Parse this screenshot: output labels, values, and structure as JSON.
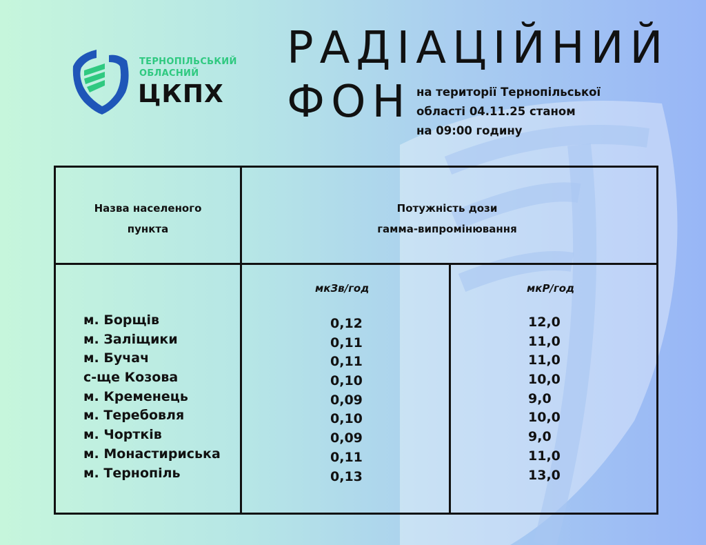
{
  "logo": {
    "org_line1": "ТЕРНОПІЛЬСЬКИЙ",
    "org_line2": "ОБЛАСНИЙ",
    "org_abbr": "ЦКПХ",
    "colors": {
      "blue": "#1f56b8",
      "green": "#2fc980"
    }
  },
  "title": {
    "line1": "РАДІАЦІЙНИЙ",
    "line2": "ФОН",
    "subtitle": [
      "на території Тернопільської",
      "області 04.11.25 станом",
      "на 09:00 годину"
    ]
  },
  "table": {
    "header_place": [
      "Назва населеного",
      "пункта"
    ],
    "header_dose": [
      "Потужність дози",
      "гамма-випромінювання"
    ],
    "unit1": "мкЗв/год",
    "unit2": "мкР/год",
    "places": [
      "м. Борщів",
      "м. Заліщики",
      "м. Бучач",
      "с-ще Козова",
      "м. Кременець",
      "м. Теребовля",
      "м. Чортків",
      "м. Монастириська",
      "м. Тернопіль"
    ],
    "usv": [
      "0,12",
      "0,11",
      "0,11",
      "0,10",
      "0,09",
      "0,10",
      "0,09",
      "0,11",
      "0,13"
    ],
    "ur": [
      "12,0",
      "11,0",
      "11,0",
      "10,0",
      "9,0",
      "10,0",
      "9,0",
      "11,0",
      "13,0"
    ]
  }
}
